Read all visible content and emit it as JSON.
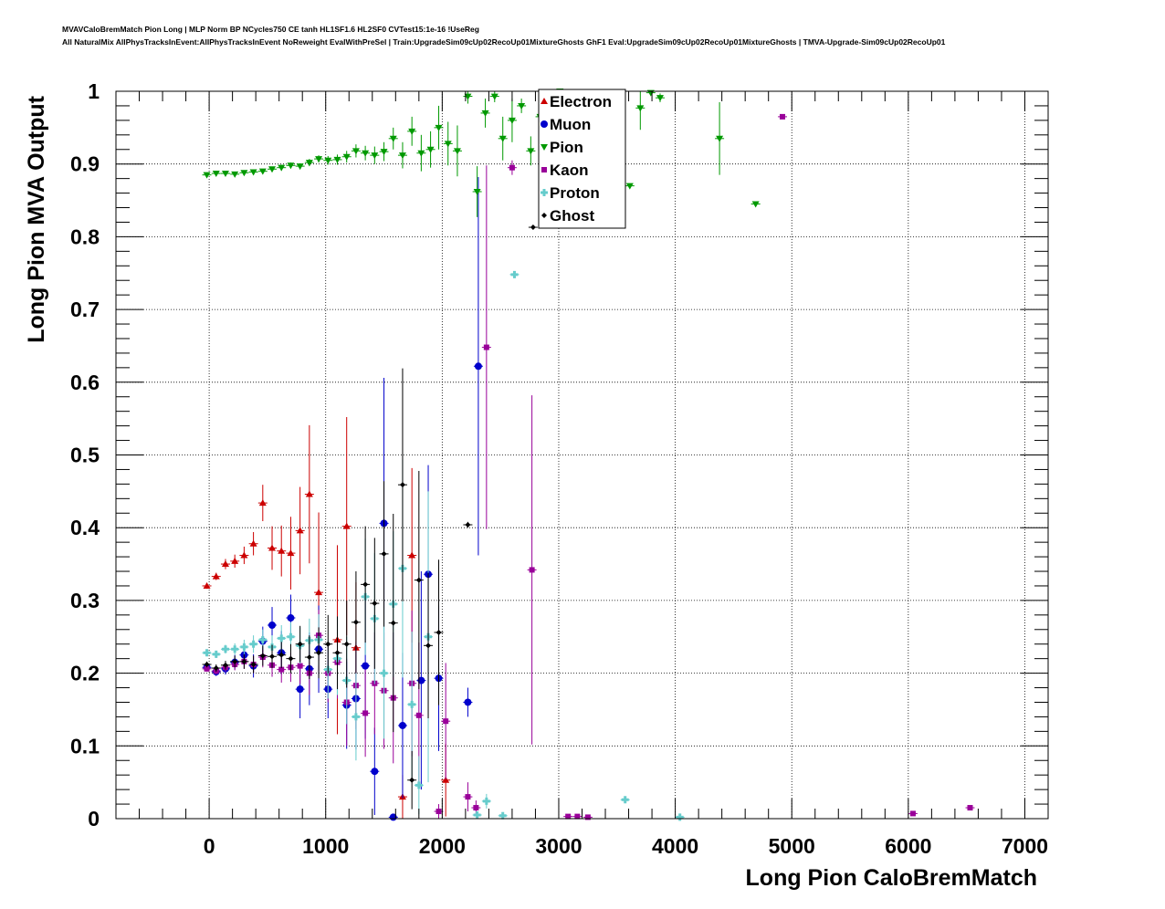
{
  "header": {
    "line1": "MVAVCaloBremMatch Pion Long | MLP Norm BP NCycles750 CE tanh HL1SF1.6 HL2SF0 CVTest15:1e-16 !UseReg",
    "line2": "All NaturalMix AllPhysTracksInEvent:AllPhysTracksInEvent NoReweight EvalWithPreSel | Train:UpgradeSim09cUp02RecoUp01MixtureGhosts GhF1 Eval:UpgradeSim09cUp02RecoUp01MixtureGhosts | TMVA-Upgrade-Sim09cUp02RecoUp01"
  },
  "chart_data": {
    "type": "scatter",
    "xlabel": "Long Pion CaloBremMatch",
    "ylabel": "Long Pion MVA Output",
    "xlim": [
      -800,
      7200
    ],
    "ylim": [
      0,
      1
    ],
    "xticks": [
      "0",
      "1000",
      "2000",
      "3000",
      "4000",
      "5000",
      "6000",
      "7000"
    ],
    "yticks": [
      "0",
      "0.1",
      "0.2",
      "0.3",
      "0.4",
      "0.5",
      "0.6",
      "0.7",
      "0.8",
      "0.9",
      "1"
    ],
    "grid": true,
    "legend_position": "top-center",
    "series": [
      {
        "name": "Electron",
        "color": "#cc0000",
        "marker": "triangle-up",
        "points": [
          {
            "x": -20,
            "y": 0.32,
            "e": 0.004
          },
          {
            "x": 60,
            "y": 0.333,
            "e": 0.005
          },
          {
            "x": 140,
            "y": 0.35,
            "e": 0.007
          },
          {
            "x": 220,
            "y": 0.354,
            "e": 0.009
          },
          {
            "x": 300,
            "y": 0.362,
            "e": 0.012
          },
          {
            "x": 380,
            "y": 0.378,
            "e": 0.016
          },
          {
            "x": 460,
            "y": 0.434,
            "e": 0.025
          },
          {
            "x": 540,
            "y": 0.372,
            "e": 0.03
          },
          {
            "x": 620,
            "y": 0.368,
            "e": 0.035
          },
          {
            "x": 700,
            "y": 0.365,
            "e": 0.05
          },
          {
            "x": 780,
            "y": 0.396,
            "e": 0.06
          },
          {
            "x": 860,
            "y": 0.446,
            "e": 0.095
          },
          {
            "x": 940,
            "y": 0.311,
            "e": 0.11
          },
          {
            "x": 1100,
            "y": 0.246,
            "e": 0.13
          },
          {
            "x": 1180,
            "y": 0.402,
            "e": 0.15
          },
          {
            "x": 1260,
            "y": 0.235,
            "e": 0.09
          },
          {
            "x": 1660,
            "y": 0.03,
            "e": 0.03
          },
          {
            "x": 1740,
            "y": 0.362,
            "e": 0.12
          },
          {
            "x": 2030,
            "y": 0.053,
            "e": 0.05
          }
        ]
      },
      {
        "name": "Muon",
        "color": "#0000cc",
        "marker": "circle",
        "points": [
          {
            "x": -20,
            "y": 0.208,
            "e": 0.004
          },
          {
            "x": 60,
            "y": 0.202,
            "e": 0.006
          },
          {
            "x": 140,
            "y": 0.206,
            "e": 0.008
          },
          {
            "x": 220,
            "y": 0.215,
            "e": 0.01
          },
          {
            "x": 300,
            "y": 0.225,
            "e": 0.014
          },
          {
            "x": 380,
            "y": 0.21,
            "e": 0.016
          },
          {
            "x": 460,
            "y": 0.244,
            "e": 0.02
          },
          {
            "x": 540,
            "y": 0.266,
            "e": 0.025
          },
          {
            "x": 620,
            "y": 0.228,
            "e": 0.03
          },
          {
            "x": 700,
            "y": 0.276,
            "e": 0.032
          },
          {
            "x": 780,
            "y": 0.178,
            "e": 0.04
          },
          {
            "x": 860,
            "y": 0.206,
            "e": 0.05
          },
          {
            "x": 940,
            "y": 0.233,
            "e": 0.06
          },
          {
            "x": 1020,
            "y": 0.178,
            "e": 0.04
          },
          {
            "x": 1180,
            "y": 0.156,
            "e": 0.06
          },
          {
            "x": 1260,
            "y": 0.165,
            "e": 0.07
          },
          {
            "x": 1340,
            "y": 0.21,
            "e": 0.1
          },
          {
            "x": 1420,
            "y": 0.065,
            "e": 0.06
          },
          {
            "x": 1500,
            "y": 0.406,
            "e": 0.2
          },
          {
            "x": 1580,
            "y": 0.002,
            "e": 0.002
          },
          {
            "x": 1660,
            "y": 0.128,
            "e": 0.1
          },
          {
            "x": 1820,
            "y": 0.19,
            "e": 0.15
          },
          {
            "x": 1880,
            "y": 0.336,
            "e": 0.15
          },
          {
            "x": 1970,
            "y": 0.193,
            "e": 0.1
          },
          {
            "x": 2220,
            "y": 0.16,
            "e": 0.02
          },
          {
            "x": 2310,
            "y": 0.622,
            "e": 0.26
          }
        ]
      },
      {
        "name": "Pion",
        "color": "#009900",
        "marker": "triangle-down",
        "points": [
          {
            "x": -20,
            "y": 0.885,
            "e": 0.003
          },
          {
            "x": 60,
            "y": 0.887,
            "e": 0.003
          },
          {
            "x": 140,
            "y": 0.887,
            "e": 0.003
          },
          {
            "x": 220,
            "y": 0.886,
            "e": 0.003
          },
          {
            "x": 300,
            "y": 0.888,
            "e": 0.003
          },
          {
            "x": 380,
            "y": 0.889,
            "e": 0.003
          },
          {
            "x": 460,
            "y": 0.89,
            "e": 0.003
          },
          {
            "x": 540,
            "y": 0.893,
            "e": 0.003
          },
          {
            "x": 620,
            "y": 0.895,
            "e": 0.004
          },
          {
            "x": 700,
            "y": 0.898,
            "e": 0.004
          },
          {
            "x": 780,
            "y": 0.897,
            "e": 0.004
          },
          {
            "x": 860,
            "y": 0.902,
            "e": 0.005
          },
          {
            "x": 940,
            "y": 0.907,
            "e": 0.005
          },
          {
            "x": 1020,
            "y": 0.905,
            "e": 0.006
          },
          {
            "x": 1100,
            "y": 0.906,
            "e": 0.007
          },
          {
            "x": 1180,
            "y": 0.91,
            "e": 0.008
          },
          {
            "x": 1260,
            "y": 0.918,
            "e": 0.009
          },
          {
            "x": 1340,
            "y": 0.915,
            "e": 0.01
          },
          {
            "x": 1420,
            "y": 0.912,
            "e": 0.012
          },
          {
            "x": 1500,
            "y": 0.917,
            "e": 0.013
          },
          {
            "x": 1580,
            "y": 0.935,
            "e": 0.015
          },
          {
            "x": 1660,
            "y": 0.912,
            "e": 0.018
          },
          {
            "x": 1740,
            "y": 0.945,
            "e": 0.02
          },
          {
            "x": 1820,
            "y": 0.915,
            "e": 0.025
          },
          {
            "x": 1900,
            "y": 0.92,
            "e": 0.025
          },
          {
            "x": 1970,
            "y": 0.95,
            "e": 0.03
          },
          {
            "x": 2050,
            "y": 0.928,
            "e": 0.03
          },
          {
            "x": 2130,
            "y": 0.918,
            "e": 0.035
          },
          {
            "x": 2220,
            "y": 0.993,
            "e": 0.01
          },
          {
            "x": 2300,
            "y": 0.862,
            "e": 0.035
          },
          {
            "x": 2370,
            "y": 0.97,
            "e": 0.02
          },
          {
            "x": 2450,
            "y": 0.993,
            "e": 0.008
          },
          {
            "x": 2520,
            "y": 0.935,
            "e": 0.03
          },
          {
            "x": 2600,
            "y": 0.96,
            "e": 0.03
          },
          {
            "x": 2680,
            "y": 0.98,
            "e": 0.01
          },
          {
            "x": 2760,
            "y": 0.918,
            "e": 0.02
          },
          {
            "x": 2840,
            "y": 0.965,
            "e": 0.02
          },
          {
            "x": 3010,
            "y": 1.0,
            "e": 0.004
          },
          {
            "x": 3610,
            "y": 0.87,
            "e": 0.003
          },
          {
            "x": 3700,
            "y": 0.977,
            "e": 0.03
          },
          {
            "x": 3790,
            "y": 0.998,
            "e": 0.003
          },
          {
            "x": 3870,
            "y": 0.991,
            "e": 0.006
          },
          {
            "x": 4380,
            "y": 0.935,
            "e": 0.05
          },
          {
            "x": 4690,
            "y": 0.845,
            "e": 0.003
          }
        ]
      },
      {
        "name": "Kaon",
        "color": "#990099",
        "marker": "square",
        "points": [
          {
            "x": -20,
            "y": 0.206,
            "e": 0.004
          },
          {
            "x": 60,
            "y": 0.203,
            "e": 0.005
          },
          {
            "x": 140,
            "y": 0.208,
            "e": 0.006
          },
          {
            "x": 220,
            "y": 0.212,
            "e": 0.008
          },
          {
            "x": 300,
            "y": 0.216,
            "e": 0.01
          },
          {
            "x": 380,
            "y": 0.212,
            "e": 0.012
          },
          {
            "x": 460,
            "y": 0.222,
            "e": 0.014
          },
          {
            "x": 540,
            "y": 0.211,
            "e": 0.016
          },
          {
            "x": 620,
            "y": 0.205,
            "e": 0.018
          },
          {
            "x": 700,
            "y": 0.208,
            "e": 0.02
          },
          {
            "x": 780,
            "y": 0.21,
            "e": 0.025
          },
          {
            "x": 860,
            "y": 0.2,
            "e": 0.03
          },
          {
            "x": 940,
            "y": 0.252,
            "e": 0.035
          },
          {
            "x": 1020,
            "y": 0.2,
            "e": 0.04
          },
          {
            "x": 1100,
            "y": 0.215,
            "e": 0.05
          },
          {
            "x": 1180,
            "y": 0.16,
            "e": 0.06
          },
          {
            "x": 1260,
            "y": 0.183,
            "e": 0.06
          },
          {
            "x": 1340,
            "y": 0.145,
            "e": 0.06
          },
          {
            "x": 1420,
            "y": 0.186,
            "e": 0.07
          },
          {
            "x": 1500,
            "y": 0.176,
            "e": 0.08
          },
          {
            "x": 1580,
            "y": 0.166,
            "e": 0.09
          },
          {
            "x": 1740,
            "y": 0.186,
            "e": 0.1
          },
          {
            "x": 1800,
            "y": 0.142,
            "e": 0.1
          },
          {
            "x": 1970,
            "y": 0.01,
            "e": 0.01
          },
          {
            "x": 2030,
            "y": 0.134,
            "e": 0.08
          },
          {
            "x": 2220,
            "y": 0.03,
            "e": 0.02
          },
          {
            "x": 2290,
            "y": 0.015,
            "e": 0.01
          },
          {
            "x": 2380,
            "y": 0.648,
            "e": 0.25
          },
          {
            "x": 2600,
            "y": 0.895,
            "e": 0.01
          },
          {
            "x": 2770,
            "y": 0.342,
            "e": 0.24
          },
          {
            "x": 3080,
            "y": 0.003,
            "e": 0.003
          },
          {
            "x": 3160,
            "y": 0.003,
            "e": 0.003
          },
          {
            "x": 3250,
            "y": 0.002,
            "e": 0.002
          },
          {
            "x": 4920,
            "y": 0.965,
            "e": 0.003
          },
          {
            "x": 6040,
            "y": 0.007,
            "e": 0.003
          },
          {
            "x": 6530,
            "y": 0.015,
            "e": 0.003
          }
        ]
      },
      {
        "name": "Proton",
        "color": "#66cccc",
        "marker": "cross",
        "points": [
          {
            "x": -20,
            "y": 0.228,
            "e": 0.004
          },
          {
            "x": 60,
            "y": 0.226,
            "e": 0.005
          },
          {
            "x": 140,
            "y": 0.233,
            "e": 0.006
          },
          {
            "x": 220,
            "y": 0.233,
            "e": 0.008
          },
          {
            "x": 300,
            "y": 0.236,
            "e": 0.01
          },
          {
            "x": 380,
            "y": 0.24,
            "e": 0.012
          },
          {
            "x": 460,
            "y": 0.246,
            "e": 0.014
          },
          {
            "x": 540,
            "y": 0.236,
            "e": 0.016
          },
          {
            "x": 620,
            "y": 0.248,
            "e": 0.018
          },
          {
            "x": 700,
            "y": 0.25,
            "e": 0.02
          },
          {
            "x": 780,
            "y": 0.238,
            "e": 0.025
          },
          {
            "x": 860,
            "y": 0.245,
            "e": 0.03
          },
          {
            "x": 940,
            "y": 0.246,
            "e": 0.035
          },
          {
            "x": 1020,
            "y": 0.205,
            "e": 0.04
          },
          {
            "x": 1100,
            "y": 0.22,
            "e": 0.05
          },
          {
            "x": 1180,
            "y": 0.19,
            "e": 0.06
          },
          {
            "x": 1260,
            "y": 0.14,
            "e": 0.06
          },
          {
            "x": 1340,
            "y": 0.305,
            "e": 0.08
          },
          {
            "x": 1420,
            "y": 0.275,
            "e": 0.09
          },
          {
            "x": 1500,
            "y": 0.2,
            "e": 0.09
          },
          {
            "x": 1580,
            "y": 0.295,
            "e": 0.1
          },
          {
            "x": 1660,
            "y": 0.344,
            "e": 0.15
          },
          {
            "x": 1740,
            "y": 0.157,
            "e": 0.1
          },
          {
            "x": 1800,
            "y": 0.046,
            "e": 0.04
          },
          {
            "x": 1880,
            "y": 0.25,
            "e": 0.2
          },
          {
            "x": 2300,
            "y": 0.005,
            "e": 0.005
          },
          {
            "x": 2380,
            "y": 0.024,
            "e": 0.01
          },
          {
            "x": 2520,
            "y": 0.004,
            "e": 0.004
          },
          {
            "x": 2620,
            "y": 0.748,
            "e": 0.003
          },
          {
            "x": 3570,
            "y": 0.026,
            "e": 0.003
          },
          {
            "x": 4040,
            "y": 0.002,
            "e": 0.002
          }
        ]
      },
      {
        "name": "Ghost",
        "color": "#000000",
        "marker": "diamond",
        "points": [
          {
            "x": -20,
            "y": 0.212,
            "e": 0.004
          },
          {
            "x": 60,
            "y": 0.207,
            "e": 0.005
          },
          {
            "x": 140,
            "y": 0.211,
            "e": 0.006
          },
          {
            "x": 220,
            "y": 0.216,
            "e": 0.008
          },
          {
            "x": 300,
            "y": 0.216,
            "e": 0.01
          },
          {
            "x": 380,
            "y": 0.212,
            "e": 0.012
          },
          {
            "x": 460,
            "y": 0.224,
            "e": 0.014
          },
          {
            "x": 540,
            "y": 0.223,
            "e": 0.016
          },
          {
            "x": 620,
            "y": 0.225,
            "e": 0.018
          },
          {
            "x": 700,
            "y": 0.22,
            "e": 0.02
          },
          {
            "x": 780,
            "y": 0.24,
            "e": 0.025
          },
          {
            "x": 860,
            "y": 0.222,
            "e": 0.03
          },
          {
            "x": 940,
            "y": 0.228,
            "e": 0.035
          },
          {
            "x": 1020,
            "y": 0.24,
            "e": 0.04
          },
          {
            "x": 1100,
            "y": 0.228,
            "e": 0.05
          },
          {
            "x": 1180,
            "y": 0.24,
            "e": 0.06
          },
          {
            "x": 1260,
            "y": 0.27,
            "e": 0.07
          },
          {
            "x": 1340,
            "y": 0.322,
            "e": 0.08
          },
          {
            "x": 1420,
            "y": 0.296,
            "e": 0.09
          },
          {
            "x": 1500,
            "y": 0.364,
            "e": 0.1
          },
          {
            "x": 1580,
            "y": 0.269,
            "e": 0.15
          },
          {
            "x": 1660,
            "y": 0.459,
            "e": 0.16
          },
          {
            "x": 1740,
            "y": 0.053,
            "e": 0.04
          },
          {
            "x": 1800,
            "y": 0.328,
            "e": 0.15
          },
          {
            "x": 1880,
            "y": 0.238,
            "e": 0.1
          },
          {
            "x": 1970,
            "y": 0.256,
            "e": 0.1
          },
          {
            "x": 2220,
            "y": 0.404,
            "e": 0.004
          },
          {
            "x": 2780,
            "y": 0.813,
            "e": 0.003
          }
        ]
      }
    ]
  }
}
